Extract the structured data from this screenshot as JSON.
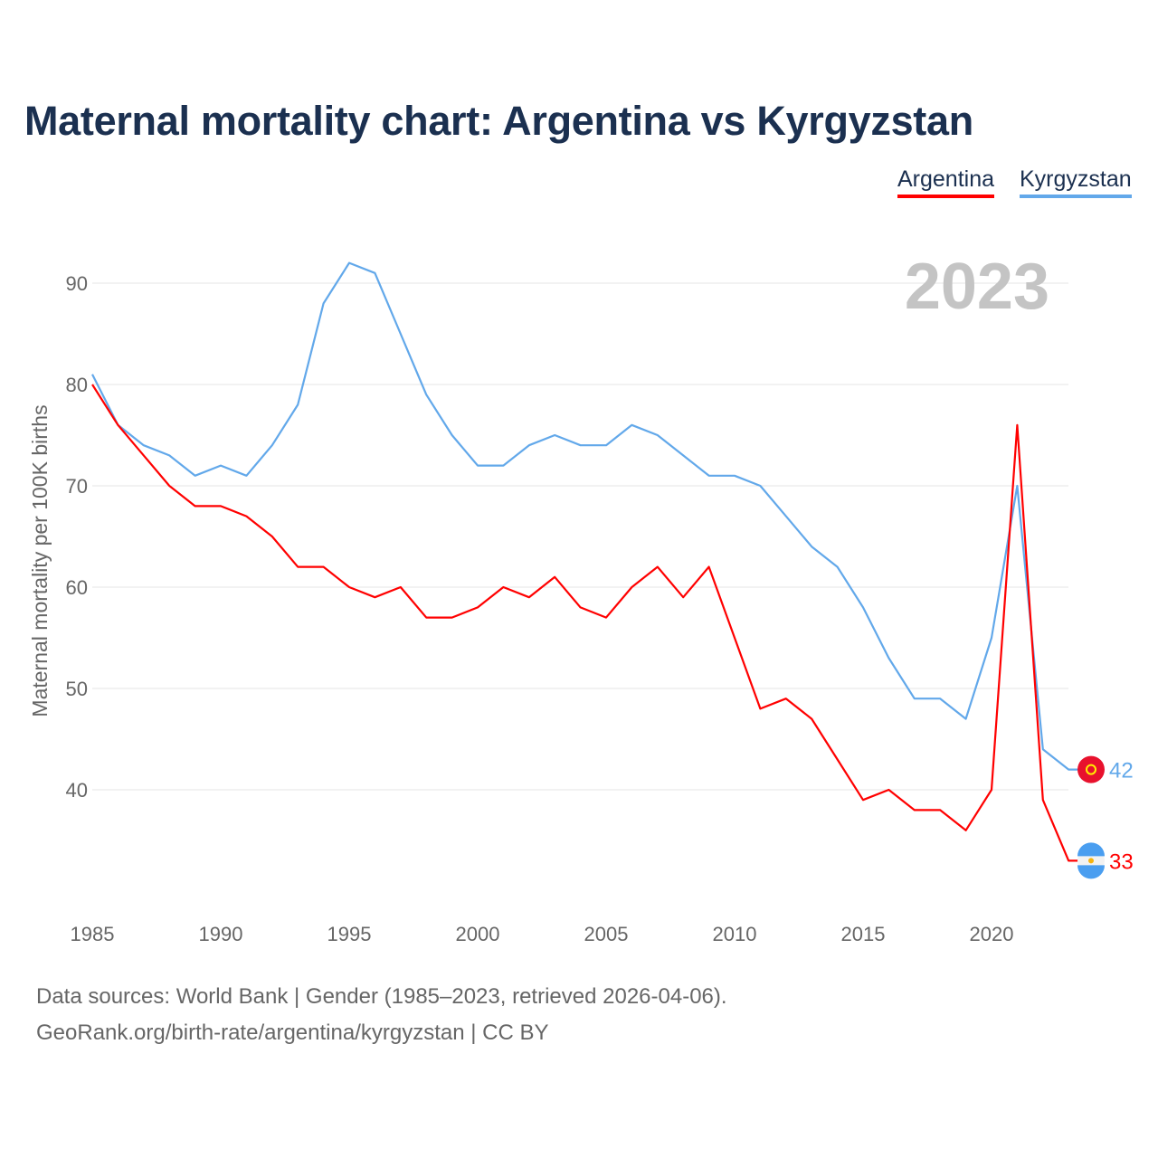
{
  "title": "Maternal mortality chart: Argentina vs Kyrgyzstan",
  "legend": [
    "Argentina",
    "Kyrgyzstan"
  ],
  "year_label": "2023",
  "footer": {
    "line1": "Data sources: World Bank | Gender (1985–2023, retrieved 2026-04-06).",
    "line2": "GeoRank.org/birth-rate/argentina/kyrgyzstan | CC BY"
  },
  "chart_data": {
    "type": "line",
    "title": "Maternal mortality chart: Argentina vs Kyrgyzstan",
    "xlabel": "",
    "ylabel": "Maternal mortality per 100K births",
    "x": [
      1985,
      1986,
      1987,
      1988,
      1989,
      1990,
      1991,
      1992,
      1993,
      1994,
      1995,
      1996,
      1997,
      1998,
      1999,
      2000,
      2001,
      2002,
      2003,
      2004,
      2005,
      2006,
      2007,
      2008,
      2009,
      2010,
      2011,
      2012,
      2013,
      2014,
      2015,
      2016,
      2017,
      2018,
      2019,
      2020,
      2021,
      2022,
      2023
    ],
    "xticks": [
      1985,
      1990,
      1995,
      2000,
      2005,
      2010,
      2015,
      2020
    ],
    "yticks": [
      40,
      50,
      60,
      70,
      80,
      90
    ],
    "xlim": [
      1985,
      2023
    ],
    "ylim": [
      29,
      96
    ],
    "grid": true,
    "legend_position": "top-right",
    "series": [
      {
        "name": "Argentina",
        "color": "#ff0000",
        "end_label": "33",
        "values": [
          80,
          76,
          73,
          70,
          68,
          68,
          67,
          65,
          62,
          62,
          60,
          59,
          60,
          57,
          57,
          58,
          60,
          59,
          61,
          58,
          57,
          60,
          62,
          59,
          62,
          55,
          48,
          49,
          47,
          43,
          39,
          40,
          38,
          38,
          36,
          40,
          76,
          39,
          33
        ]
      },
      {
        "name": "Kyrgyzstan",
        "color": "#62a8ea",
        "end_label": "42",
        "values": [
          81,
          76,
          74,
          73,
          71,
          72,
          71,
          74,
          78,
          88,
          92,
          91,
          85,
          79,
          75,
          72,
          72,
          74,
          75,
          74,
          74,
          76,
          75,
          73,
          71,
          71,
          70,
          67,
          64,
          62,
          58,
          53,
          49,
          49,
          47,
          55,
          70,
          44,
          42
        ]
      }
    ]
  }
}
